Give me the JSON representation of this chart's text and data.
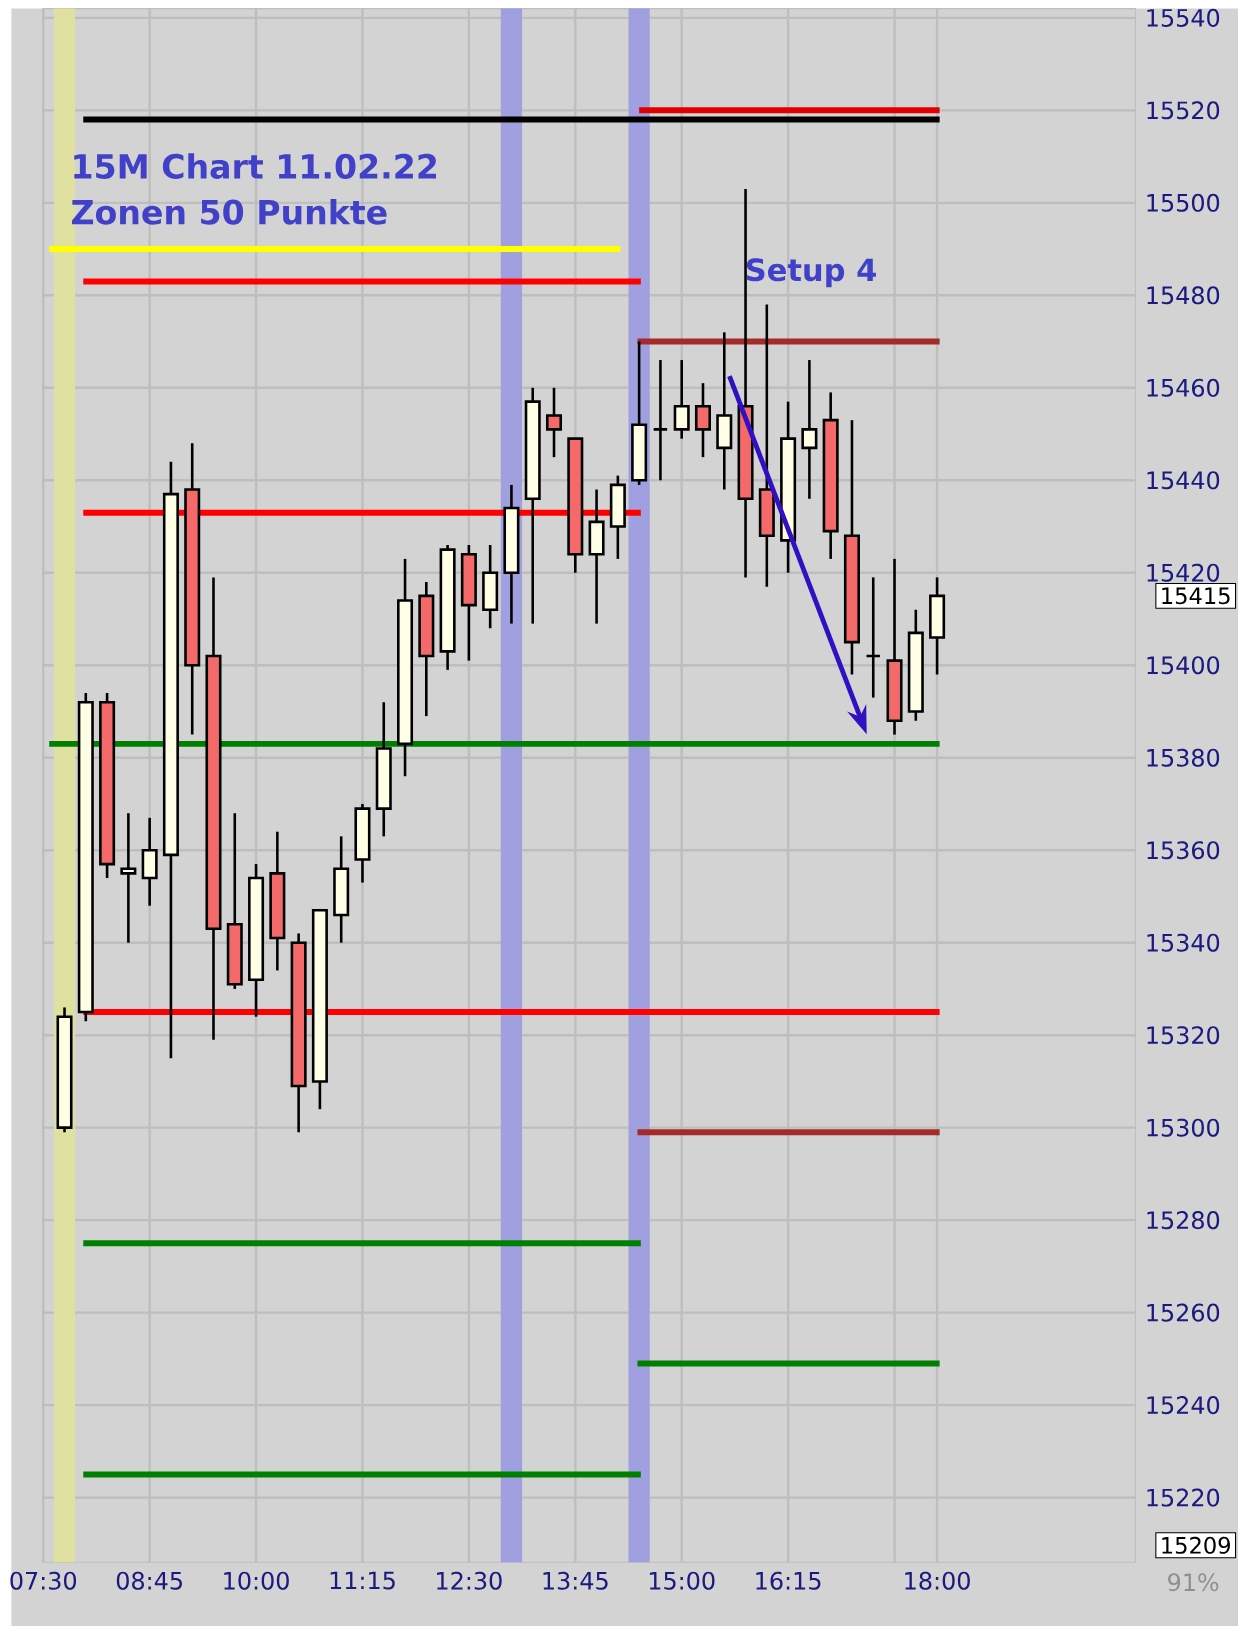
{
  "chart_data": {
    "type": "candlestick",
    "title": "15M Chart 11.02.22",
    "subtitle": "Zonen 50 Punkte",
    "x": [
      7.75,
      8.0,
      8.25,
      8.5,
      8.75,
      9.0,
      9.25,
      9.5,
      9.75,
      10.0,
      10.25,
      10.5,
      10.75,
      11.0,
      11.25,
      11.5,
      11.75,
      12.0,
      12.25,
      12.5,
      12.75,
      13.0,
      13.25,
      13.5,
      13.75,
      14.0,
      14.25,
      14.5,
      14.75,
      15.0,
      15.25,
      15.5,
      15.75,
      16.0,
      16.25,
      16.5,
      16.75,
      17.0,
      17.25,
      17.5,
      17.75,
      18.0
    ],
    "ohlc": [
      [
        15300,
        15326,
        15299,
        15324
      ],
      [
        15325,
        15394,
        15323,
        15392
      ],
      [
        15392,
        15394,
        15354,
        15357
      ],
      [
        15355,
        15368,
        15340,
        15356
      ],
      [
        15354,
        15367,
        15348,
        15360
      ],
      [
        15359,
        15444,
        15315,
        15437
      ],
      [
        15438,
        15448,
        15385,
        15400
      ],
      [
        15402,
        15419,
        15319,
        15343
      ],
      [
        15344,
        15368,
        15330,
        15331
      ],
      [
        15332,
        15357,
        15324,
        15354
      ],
      [
        15355,
        15364,
        15334,
        15341
      ],
      [
        15340,
        15342,
        15299,
        15309
      ],
      [
        15310,
        15347,
        15304,
        15347
      ],
      [
        15346,
        15363,
        15340,
        15356
      ],
      [
        15358,
        15370,
        15353,
        15369
      ],
      [
        15369,
        15392,
        15363,
        15382
      ],
      [
        15383,
        15423,
        15376,
        15414
      ],
      [
        15415,
        15418,
        15389,
        15402
      ],
      [
        15403,
        15426,
        15399,
        15425
      ],
      [
        15424,
        15426,
        15401,
        15413
      ],
      [
        15412,
        15426,
        15408,
        15420
      ],
      [
        15420,
        15439,
        15409,
        15434
      ],
      [
        15436,
        15460,
        15409,
        15457
      ],
      [
        15454,
        15460,
        15445,
        15451
      ],
      [
        15449,
        15449,
        15420,
        15424
      ],
      [
        15424,
        15438,
        15409,
        15431
      ],
      [
        15430,
        15441,
        15423,
        15439
      ],
      [
        15440,
        15470,
        15439,
        15452
      ],
      [
        15451,
        15466,
        15440,
        15451
      ],
      [
        15451,
        15466,
        15449,
        15456
      ],
      [
        15456,
        15461,
        15445,
        15451
      ],
      [
        15447,
        15472,
        15438,
        15454
      ],
      [
        15456,
        15503,
        15419,
        15436
      ],
      [
        15438,
        15478,
        15417,
        15428
      ],
      [
        15427,
        15457,
        15420,
        15449
      ],
      [
        15447,
        15466,
        15436,
        15451
      ],
      [
        15453,
        15459,
        15423,
        15429
      ],
      [
        15428,
        15453,
        15398,
        15405
      ],
      [
        15402,
        15419,
        15393,
        15402
      ],
      [
        15401,
        15423,
        15385,
        15388
      ],
      [
        15390,
        15412,
        15388,
        15407
      ],
      [
        15406,
        15419,
        15398,
        15415
      ]
    ],
    "colors": [
      "#ffffe6",
      "#ffffe6",
      "#f46a6a",
      "#ffffe6",
      "#ffffe6",
      "#ffffe6",
      "#f46a6a",
      "#f46a6a",
      "#f46a6a",
      "#ffffe6",
      "#f46a6a",
      "#f46a6a",
      "#ffffe6",
      "#ffffe6",
      "#ffffe6",
      "#ffffe6",
      "#ffffe6",
      "#f46a6a",
      "#ffffe6",
      "#f46a6a",
      "#ffffe6",
      "#ffffe6",
      "#ffffe6",
      "#f46a6a",
      "#f46a6a",
      "#ffffe6",
      "#ffffe6",
      "#ffffe6",
      "#000000",
      "#ffffe6",
      "#f46a6a",
      "#ffffe6",
      "#f46a6a",
      "#f46a6a",
      "#ffffe6",
      "#ffffe6",
      "#f46a6a",
      "#f46a6a",
      "#000000",
      "#f46a6a",
      "#ffffe6",
      "#ffffe6"
    ],
    "series": [
      {
        "type": "line",
        "x": [
          7.97,
          18.03
        ],
        "values": [
          15518,
          15518
        ],
        "color": "#000000"
      },
      {
        "type": "line",
        "x": [
          14.5,
          18.03
        ],
        "values": [
          15520,
          15520
        ],
        "color": "#e00000"
      },
      {
        "type": "line",
        "x": [
          7.57,
          14.28
        ],
        "values": [
          15490,
          15490
        ],
        "color": "#ffff00"
      },
      {
        "type": "line",
        "x": [
          7.97,
          14.52
        ],
        "values": [
          15483,
          15483
        ],
        "color": "#ff0000"
      },
      {
        "type": "line",
        "x": [
          14.48,
          18.03
        ],
        "values": [
          15470,
          15470
        ],
        "color": "#a52a2a"
      },
      {
        "type": "line",
        "x": [
          7.97,
          14.52
        ],
        "values": [
          15433,
          15433
        ],
        "color": "#ff0000"
      },
      {
        "type": "line",
        "x": [
          7.57,
          18.03
        ],
        "values": [
          15383,
          15383
        ],
        "color": "#008000"
      },
      {
        "type": "line",
        "x": [
          7.97,
          18.03
        ],
        "values": [
          15325,
          15325
        ],
        "color": "#ff0000"
      },
      {
        "type": "line",
        "x": [
          14.48,
          18.03
        ],
        "values": [
          15299,
          15299
        ],
        "color": "#a52a2a"
      },
      {
        "type": "line",
        "x": [
          7.97,
          14.52
        ],
        "values": [
          15275,
          15275
        ],
        "color": "#008000"
      },
      {
        "type": "line",
        "x": [
          14.48,
          18.03
        ],
        "values": [
          15249,
          15249
        ],
        "color": "#008000"
      },
      {
        "type": "line",
        "x": [
          7.97,
          14.52
        ],
        "values": [
          15225,
          15225
        ],
        "color": "#008000"
      }
    ],
    "bands": [
      {
        "axis": "x",
        "from": 7.625,
        "to": 7.875,
        "color": "#e0e0a0"
      },
      {
        "axis": "x",
        "from": 12.875,
        "to": 13.125,
        "color": "#a0a0e0"
      },
      {
        "axis": "x",
        "from": 14.375,
        "to": 14.625,
        "color": "#a0a0e0"
      }
    ],
    "annotations": [
      "Setup 4",
      "15415",
      "15209",
      "91%"
    ],
    "xlim": [
      7.5,
      20.33
    ],
    "ylim": [
      15206,
      15542
    ],
    "xticks": [
      {
        "value": 7.5,
        "label": "07:30"
      },
      {
        "value": 8.75,
        "label": "08:45"
      },
      {
        "value": 10,
        "label": "10:00"
      },
      {
        "value": 11.25,
        "label": "11:15"
      },
      {
        "value": 12.5,
        "label": "12:30"
      },
      {
        "value": 13.75,
        "label": "13:45"
      },
      {
        "value": 15,
        "label": "15:00"
      },
      {
        "value": 16.25,
        "label": "16:15"
      },
      {
        "value": 17.5,
        "label": null
      },
      {
        "value": 18,
        "label": "18:00"
      }
    ],
    "yticks": [
      15220,
      15240,
      15260,
      15280,
      15300,
      15320,
      15340,
      15360,
      15380,
      15400,
      15420,
      15440,
      15460,
      15480,
      15500,
      15520,
      15540
    ],
    "grid": true
  }
}
